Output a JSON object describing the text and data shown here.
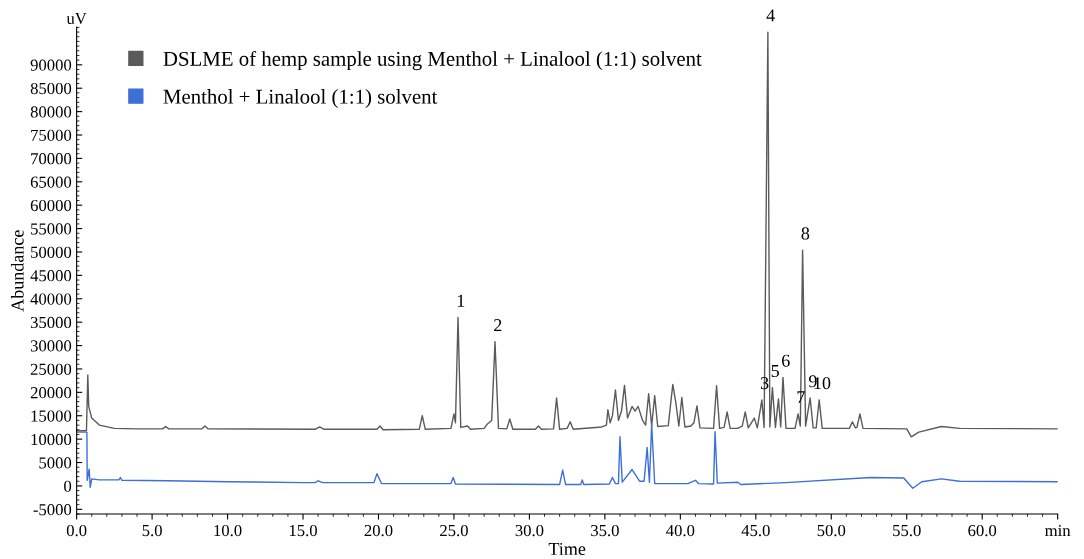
{
  "chart_data": {
    "type": "line",
    "xlabel": "Time",
    "ylabel": "Abundance",
    "xlim": [
      0,
      65
    ],
    "xticks": [
      {
        "value": 0,
        "label": "0.0"
      },
      {
        "value": 5,
        "label": "5.0"
      },
      {
        "value": 10,
        "label": "10.0"
      },
      {
        "value": 15,
        "label": "15.0"
      },
      {
        "value": 20,
        "label": "20.0"
      },
      {
        "value": 25,
        "label": "25.0"
      },
      {
        "value": 30,
        "label": "30.0"
      },
      {
        "value": 35,
        "label": "35.0"
      },
      {
        "value": 40,
        "label": "40.0"
      },
      {
        "value": 45,
        "label": "45.0"
      },
      {
        "value": 50,
        "label": "50.0"
      },
      {
        "value": 55,
        "label": "55.0"
      },
      {
        "value": 60,
        "label": "60.0"
      },
      {
        "value": 65,
        "label": "min"
      }
    ],
    "ylim": [
      -6000,
      98000
    ],
    "yticks": [
      -5000,
      0,
      5000,
      10000,
      15000,
      20000,
      25000,
      30000,
      35000,
      40000,
      45000,
      50000,
      55000,
      60000,
      65000,
      70000,
      75000,
      80000,
      85000,
      90000
    ],
    "grid": false,
    "legend": "top left",
    "marker": "none",
    "line_style": "solid",
    "series": [
      {
        "name": "DSLME of hemp sample using Menthol + Linalool (1:1) solvent",
        "color": "#5a5a5a",
        "x": [
          0,
          0.65,
          0.74,
          0.8,
          1.0,
          1.5,
          2.5,
          4,
          5.7,
          5.9,
          6.1,
          8.3,
          8.5,
          8.7,
          15.8,
          16.1,
          16.4,
          19.9,
          20.1,
          20.3,
          22.7,
          22.9,
          23.1,
          24.8,
          25.0,
          25.1,
          25.27,
          25.45,
          25.9,
          26.1,
          27.0,
          27.2,
          27.5,
          27.72,
          27.95,
          28.5,
          28.7,
          28.9,
          30.4,
          30.6,
          30.8,
          31.6,
          31.8,
          32.0,
          32.5,
          32.7,
          32.9,
          34.8,
          35.1,
          35.2,
          35.35,
          35.5,
          35.7,
          35.9,
          36.1,
          36.3,
          36.5,
          36.8,
          37.0,
          37.2,
          37.5,
          37.7,
          37.9,
          38.1,
          38.3,
          38.5,
          39.2,
          39.5,
          39.7,
          39.9,
          40.1,
          40.3,
          40.7,
          40.9,
          41.1,
          41.3,
          42.2,
          42.4,
          42.6,
          42.9,
          43.1,
          43.3,
          43.8,
          44.1,
          44.3,
          44.5,
          44.9,
          45.1,
          45.4,
          45.55,
          45.8,
          45.93,
          46.1,
          46.3,
          46.5,
          46.65,
          46.8,
          47.0,
          47.6,
          47.8,
          47.95,
          48.1,
          48.3,
          48.6,
          48.8,
          49.0,
          49.2,
          49.4,
          51.2,
          51.4,
          51.6,
          51.7,
          51.9,
          52.1,
          55.0,
          55.3,
          55.8,
          57.3,
          58.5,
          65
        ],
        "values": [
          11800,
          11800,
          23700,
          17000,
          14500,
          13000,
          12300,
          12200,
          12200,
          12700,
          12200,
          12200,
          12800,
          12200,
          12100,
          12600,
          12100,
          12100,
          12800,
          12000,
          12100,
          15000,
          12100,
          12300,
          15400,
          13500,
          36000,
          12500,
          12800,
          12100,
          12300,
          13200,
          14000,
          30800,
          12300,
          12200,
          14300,
          12100,
          12100,
          12800,
          12100,
          12200,
          18800,
          12100,
          12300,
          13700,
          12100,
          12600,
          13000,
          16300,
          13500,
          15000,
          20500,
          14000,
          16000,
          21500,
          14500,
          17000,
          16000,
          17000,
          14000,
          13000,
          19700,
          12800,
          19300,
          12700,
          12900,
          21700,
          17800,
          12800,
          18900,
          12600,
          12800,
          13500,
          17100,
          12400,
          12300,
          21400,
          12300,
          12500,
          15800,
          12300,
          12300,
          12800,
          15800,
          12400,
          14500,
          12400,
          18400,
          12500,
          97000,
          12600,
          21000,
          12500,
          18600,
          12600,
          23200,
          12300,
          12300,
          15400,
          12800,
          50400,
          12800,
          18800,
          12400,
          12400,
          18400,
          12300,
          12300,
          13700,
          12400,
          12500,
          15400,
          12300,
          12200,
          10500,
          11500,
          12700,
          12300,
          12200
        ]
      },
      {
        "name": "Menthol + Linalool (1:1) solvent",
        "color": "#3d6fd6",
        "x": [
          0,
          0.68,
          0.7,
          0.83,
          0.9,
          1.0,
          1.5,
          2.8,
          2.9,
          3.0,
          6,
          10,
          15.0,
          15.8,
          16.0,
          16.3,
          19.7,
          19.9,
          20.2,
          24.8,
          24.95,
          25.1,
          32.0,
          32.2,
          32.4,
          33.4,
          33.5,
          33.6,
          35.3,
          35.5,
          35.7,
          35.9,
          36.0,
          36.15,
          36.8,
          37.3,
          37.6,
          37.8,
          37.95,
          38.1,
          38.3,
          40.5,
          41.0,
          41.2,
          42.2,
          42.3,
          42.45,
          43.8,
          44.0,
          47,
          52.6,
          54.8,
          55.4,
          56.0,
          57.3,
          58.5,
          65
        ],
        "values": [
          11500,
          11500,
          1200,
          3600,
          -300,
          1500,
          1300,
          1300,
          1800,
          1200,
          1100,
          900,
          700,
          700,
          1100,
          700,
          700,
          2600,
          500,
          500,
          1800,
          400,
          300,
          3400,
          300,
          300,
          1300,
          300,
          400,
          1800,
          500,
          500,
          10500,
          800,
          3500,
          1000,
          1000,
          8200,
          800,
          13200,
          500,
          500,
          1200,
          500,
          400,
          11600,
          600,
          800,
          300,
          700,
          1800,
          1700,
          -500,
          900,
          1500,
          1000,
          900
        ]
      }
    ],
    "annotations": [
      "uV",
      {
        "text": "1",
        "x": 25.27,
        "y": 36000
      },
      {
        "text": "2",
        "x": 27.72,
        "y": 30800
      },
      {
        "text": "3",
        "x": 45.4,
        "y": 18400
      },
      {
        "text": "4",
        "x": 45.8,
        "y": 97000
      },
      {
        "text": "5",
        "x": 46.1,
        "y": 21000
      },
      {
        "text": "6",
        "x": 46.8,
        "y": 23200
      },
      {
        "text": "7",
        "x": 47.8,
        "y": 15400
      },
      {
        "text": "8",
        "x": 48.1,
        "y": 50400
      },
      {
        "text": "9",
        "x": 48.6,
        "y": 18800
      },
      {
        "text": "10",
        "x": 49.2,
        "y": 18400
      }
    ]
  }
}
